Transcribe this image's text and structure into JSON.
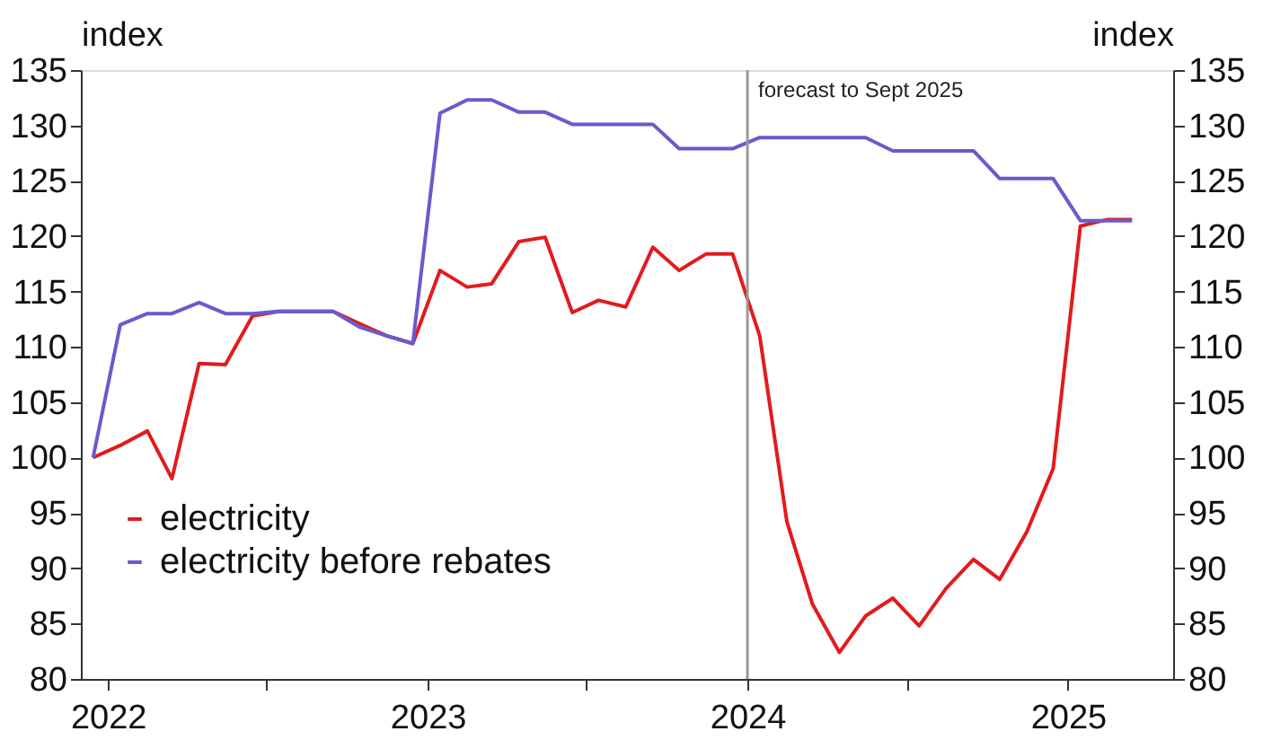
{
  "chart_data": {
    "type": "line",
    "ylabel": "index",
    "y2label": "index",
    "x": [
      "2021-12-15",
      "2022-01-15",
      "2022-02-15",
      "2022-03-15",
      "2022-04-15",
      "2022-05-15",
      "2022-06-15",
      "2022-07-15",
      "2022-08-15",
      "2022-09-15",
      "2022-10-15",
      "2022-11-15",
      "2022-12-15",
      "2023-01-15",
      "2023-02-15",
      "2023-03-15",
      "2023-04-15",
      "2023-05-15",
      "2023-06-15",
      "2023-07-15",
      "2023-08-15",
      "2023-09-15",
      "2023-10-15",
      "2023-11-15",
      "2023-12-15",
      "2024-01-15",
      "2024-02-15",
      "2024-03-15",
      "2024-04-15",
      "2024-05-15",
      "2024-06-15",
      "2024-07-15",
      "2024-08-15",
      "2024-09-15",
      "2024-10-15",
      "2024-11-15",
      "2024-12-15",
      "2025-01-15",
      "2025-02-15",
      "2025-03-15"
    ],
    "series": [
      {
        "name": "electricity",
        "color": "#e31a1c",
        "values": [
          100,
          101.1,
          102.4,
          98.1,
          108.5,
          108.4,
          112.8,
          113.2,
          113.2,
          113.2,
          112.1,
          111.0,
          110.3,
          116.9,
          115.4,
          115.7,
          119.5,
          119.9,
          113.1,
          114.2,
          113.6,
          119.0,
          116.9,
          118.4,
          118.4,
          111.0,
          94.2,
          86.8,
          82.4,
          85.7,
          87.3,
          84.8,
          88.2,
          90.8,
          89.0,
          93.3,
          99.0,
          120.9,
          121.5,
          121.5
        ]
      },
      {
        "name": "electricity before rebates",
        "color": "#6a5acd",
        "values": [
          100,
          112,
          113,
          113,
          114,
          113,
          113,
          113.2,
          113.2,
          113.2,
          111.8,
          111.0,
          110.3,
          131.1,
          132.3,
          132.3,
          131.2,
          131.2,
          130.1,
          130.1,
          130.1,
          130.1,
          127.9,
          127.9,
          127.9,
          128.9,
          128.9,
          128.9,
          128.9,
          128.9,
          127.7,
          127.7,
          127.7,
          127.7,
          125.2,
          125.2,
          125.2,
          121.4,
          121.4,
          121.4
        ]
      }
    ],
    "xlim": [
      "2021-12-01",
      "2025-05-01"
    ],
    "xticks": [
      {
        "value": "2022-01-01",
        "label": "2022"
      },
      {
        "value": "2022-07-01",
        "label": null
      },
      {
        "value": "2023-01-01",
        "label": "2023"
      },
      {
        "value": "2023-07-01",
        "label": null
      },
      {
        "value": "2024-01-01",
        "label": "2024"
      },
      {
        "value": "2024-07-01",
        "label": null
      },
      {
        "value": "2025-01-01",
        "label": "2025"
      }
    ],
    "ylim": [
      80,
      135
    ],
    "yticks": [
      80,
      85,
      90,
      95,
      100,
      105,
      110,
      115,
      120,
      125,
      130,
      135
    ],
    "y2lim": [
      80,
      135
    ],
    "y2ticks": [
      80,
      85,
      90,
      95,
      100,
      105,
      110,
      115,
      120,
      125,
      130,
      135
    ],
    "ref_lines": [
      {
        "axis": "x",
        "value": "2024-01-01",
        "label": "forecast to Sept 2025",
        "color": "#999999"
      }
    ],
    "legend": "left",
    "grid": false,
    "marker": "none",
    "line_style": "solid"
  }
}
